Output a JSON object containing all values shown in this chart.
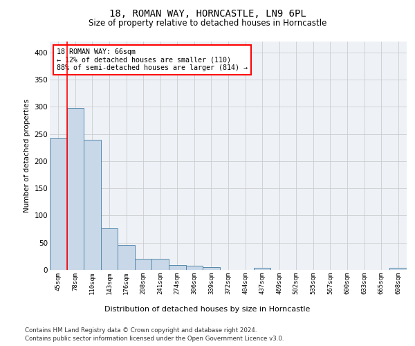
{
  "title1": "18, ROMAN WAY, HORNCASTLE, LN9 6PL",
  "title2": "Size of property relative to detached houses in Horncastle",
  "xlabel": "Distribution of detached houses by size in Horncastle",
  "ylabel": "Number of detached properties",
  "categories": [
    "45sqm",
    "78sqm",
    "110sqm",
    "143sqm",
    "176sqm",
    "208sqm",
    "241sqm",
    "274sqm",
    "306sqm",
    "339sqm",
    "372sqm",
    "404sqm",
    "437sqm",
    "469sqm",
    "502sqm",
    "535sqm",
    "567sqm",
    "600sqm",
    "633sqm",
    "665sqm",
    "698sqm"
  ],
  "values": [
    242,
    298,
    239,
    76,
    46,
    21,
    21,
    9,
    8,
    5,
    0,
    0,
    4,
    0,
    0,
    0,
    0,
    0,
    0,
    0,
    4
  ],
  "bar_color": "#c8d8e8",
  "bar_edge_color": "#5588aa",
  "annotation_text": "18 ROMAN WAY: 66sqm\n← 12% of detached houses are smaller (110)\n88% of semi-detached houses are larger (814) →",
  "annotation_box_color": "white",
  "annotation_box_edge_color": "red",
  "footer1": "Contains HM Land Registry data © Crown copyright and database right 2024.",
  "footer2": "Contains public sector information licensed under the Open Government Licence v3.0.",
  "ylim": [
    0,
    420
  ],
  "yticks": [
    0,
    50,
    100,
    150,
    200,
    250,
    300,
    350,
    400
  ],
  "grid_color": "#cccccc",
  "bg_color": "#eef2f7"
}
